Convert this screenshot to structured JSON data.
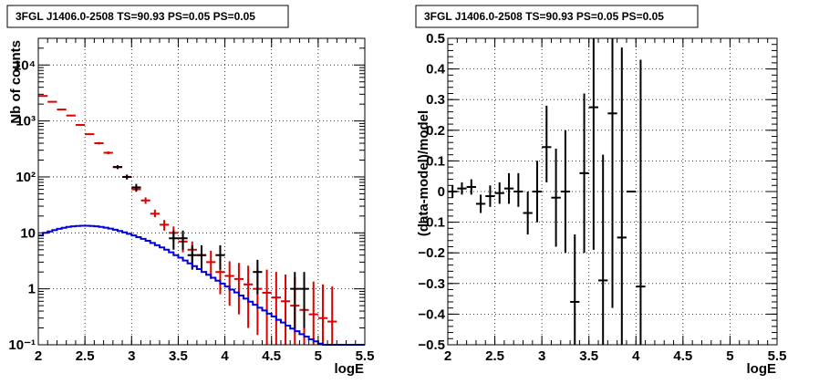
{
  "chart_data": [
    {
      "type": "histogram",
      "title": "3FGL J1406.0-2508 TS=90.93 PS=0.05 PS=0.05",
      "xlabel": "logE",
      "ylabel": "Nb of counts",
      "xlim": [
        2,
        5.5
      ],
      "ylim": [
        0.1,
        30000
      ],
      "yscale": "log",
      "grid": true,
      "x_ticks": [
        "2",
        "2.5",
        "3",
        "3.5",
        "4",
        "4.5",
        "5",
        "5.5"
      ],
      "y_ticks": [
        {
          "value": 0.1,
          "label": "10⁻¹"
        },
        {
          "value": 1,
          "label": "1"
        },
        {
          "value": 10,
          "label": "10"
        },
        {
          "value": 100,
          "label": "10²"
        },
        {
          "value": 1000,
          "label": "10³"
        },
        {
          "value": 10000,
          "label": "10⁴"
        }
      ],
      "series": [
        {
          "color": "#dd0000",
          "style": "errorbar",
          "x": [
            2.05,
            2.15,
            2.25,
            2.35,
            2.45,
            2.55,
            2.65,
            2.75,
            2.85,
            2.95,
            3.05,
            3.15,
            3.25,
            3.35,
            3.45,
            3.55,
            3.65,
            3.75,
            3.85,
            3.95,
            4.05,
            4.15,
            4.25,
            4.35,
            4.45,
            4.55,
            4.65,
            4.75,
            4.85,
            4.95,
            5.05,
            5.15
          ],
          "y": [
            2800,
            2200,
            1600,
            1250,
            850,
            580,
            400,
            270,
            150,
            100,
            60,
            38,
            22,
            14,
            10,
            7,
            5,
            4,
            3,
            2,
            1.7,
            1.5,
            1.2,
            1,
            0.85,
            0.7,
            0.6,
            0.5,
            0.42,
            0.35,
            0.3,
            0.26
          ],
          "y_low": [
            2750,
            2150,
            1560,
            1210,
            820,
            560,
            380,
            255,
            140,
            92,
            54,
            33,
            19,
            11,
            7,
            4.5,
            3,
            2.2,
            1.5,
            0.8,
            0.5,
            0.35,
            0.2,
            0.15,
            0.1,
            0.1,
            0.1,
            0.1,
            0.1,
            0.1,
            0.1,
            0.1
          ],
          "y_high": [
            2850,
            2250,
            1640,
            1290,
            880,
            600,
            420,
            285,
            160,
            108,
            66,
            43,
            26,
            17,
            13,
            9.5,
            7,
            5.8,
            4.8,
            3.5,
            3.1,
            2.9,
            2.6,
            2.4,
            2.2,
            2,
            1.8,
            1.6,
            1.5,
            1.35,
            1.2,
            1.1
          ]
        },
        {
          "color": "#000000",
          "style": "errorbar",
          "x": [
            2.85,
            2.95,
            3.05,
            3.45,
            3.55,
            3.65,
            3.75,
            3.95,
            4.35,
            4.75,
            4.85
          ],
          "y": [
            150,
            100,
            65,
            8,
            8,
            4,
            4,
            4,
            2,
            1,
            1
          ],
          "y_low": [
            138,
            90,
            55,
            5,
            5,
            2.2,
            2.2,
            2.2,
            0.8,
            0.2,
            0.2
          ],
          "y_high": [
            162,
            110,
            75,
            11,
            11,
            6,
            6,
            6,
            3.3,
            2,
            2
          ]
        },
        {
          "color": "#0000dd",
          "style": "step",
          "x_edges": [
            2.0,
            2.05,
            2.1,
            2.15,
            2.2,
            2.25,
            2.3,
            2.35,
            2.4,
            2.45,
            2.5,
            2.55,
            2.6,
            2.65,
            2.7,
            2.75,
            2.8,
            2.85,
            2.9,
            2.95,
            3.0,
            3.05,
            3.1,
            3.15,
            3.2,
            3.25,
            3.3,
            3.35,
            3.4,
            3.45,
            3.5,
            3.55,
            3.6,
            3.65,
            3.7,
            3.75,
            3.8,
            3.85,
            3.9,
            3.95,
            4.0,
            4.05,
            4.1,
            4.15,
            4.2,
            4.25,
            4.3,
            4.35,
            4.4,
            4.45,
            4.5,
            4.55,
            4.6,
            4.65,
            4.7,
            4.75,
            4.8,
            4.85,
            4.9,
            4.95,
            5.0,
            5.05,
            5.1,
            5.15,
            5.2,
            5.25,
            5.3,
            5.35,
            5.4,
            5.45,
            5.5
          ],
          "y": [
            9,
            10,
            10.6,
            11.2,
            11.8,
            12.3,
            12.8,
            13.1,
            13.3,
            13.4,
            13.4,
            13.3,
            13.1,
            12.8,
            12.4,
            11.9,
            11.4,
            10.8,
            10.2,
            9.6,
            9.0,
            8.4,
            7.8,
            7.2,
            6.6,
            6.0,
            5.5,
            5.0,
            4.5,
            4.0,
            3.6,
            3.2,
            2.85,
            2.55,
            2.25,
            2.0,
            1.78,
            1.58,
            1.4,
            1.24,
            1.1,
            0.97,
            0.86,
            0.76,
            0.67,
            0.59,
            0.52,
            0.46,
            0.41,
            0.36,
            0.32,
            0.28,
            0.25,
            0.22,
            0.195,
            0.175,
            0.155,
            0.14,
            0.125,
            0.115,
            0.105,
            0.1,
            0.1,
            0.1,
            0.1,
            0.1,
            0.1,
            0.1,
            0.1,
            0.1
          ]
        }
      ]
    },
    {
      "type": "errorbar",
      "title": "3FGL J1406.0-2508 TS=90.93 PS=0.05 PS=0.05",
      "xlabel": "logE",
      "ylabel": "(data-model)/model",
      "xlim": [
        2,
        5.5
      ],
      "ylim": [
        -0.5,
        0.5
      ],
      "grid": true,
      "x_ticks": [
        "2",
        "2.5",
        "3",
        "3.5",
        "4",
        "4.5",
        "5",
        "5.5"
      ],
      "y_ticks": [
        "−0.5",
        "−0.4",
        "−0.3",
        "−0.2",
        "−0.1",
        "0",
        "0.1",
        "0.2",
        "0.3",
        "0.4",
        "0.5"
      ],
      "series": [
        {
          "color": "#000000",
          "x": [
            2.05,
            2.15,
            2.25,
            2.35,
            2.45,
            2.55,
            2.65,
            2.75,
            2.85,
            2.95,
            3.05,
            3.15,
            3.25,
            3.35,
            3.45,
            3.55,
            3.65,
            3.75,
            3.85,
            3.95,
            4.05
          ],
          "y": [
            0.0,
            0.01,
            0.015,
            -0.04,
            -0.015,
            -0.005,
            0.01,
            0.0,
            -0.07,
            0.0,
            0.145,
            -0.02,
            0.0,
            -0.36,
            0.06,
            0.275,
            -0.29,
            0.255,
            -0.15,
            0.0,
            -0.31
          ],
          "y_low": [
            -0.02,
            -0.01,
            -0.01,
            -0.07,
            -0.05,
            -0.04,
            -0.04,
            -0.05,
            -0.14,
            -0.1,
            0.03,
            -0.18,
            -0.2,
            -0.58,
            -0.2,
            -0.19,
            -0.7,
            -0.38,
            -0.55,
            0.0,
            -0.56
          ],
          "y_high": [
            0.02,
            0.03,
            0.04,
            -0.01,
            0.02,
            0.03,
            0.06,
            0.06,
            0.0,
            0.1,
            0.28,
            0.14,
            0.2,
            -0.14,
            0.32,
            0.6,
            0.12,
            0.6,
            0.47,
            0.0,
            0.43
          ]
        }
      ]
    }
  ]
}
